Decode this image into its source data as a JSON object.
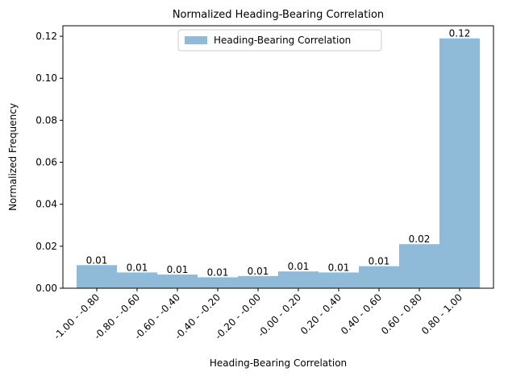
{
  "chart_data": {
    "type": "bar",
    "title": "Normalized Heading-Bearing Correlation",
    "x_label": "Heading-Bearing Correlation",
    "y_label": "Normalized Frequency",
    "categories": [
      "-1.00 - -0.80",
      "-0.80 - -0.60",
      "-0.60 - -0.40",
      "-0.40 - -0.20",
      "-0.20 - -0.00",
      "-0.00 - 0.20",
      "0.20 - 0.40",
      "0.40 - 0.60",
      "0.60 - 0.80",
      "0.80 - 1.00"
    ],
    "series": [
      {
        "name": "Heading-Bearing Correlation",
        "color": "#8fbbd9",
        "values": [
          0.011,
          0.0075,
          0.0065,
          0.0052,
          0.0058,
          0.008,
          0.0075,
          0.0105,
          0.021,
          0.119
        ],
        "value_labels": [
          "0.01",
          "0.01",
          "0.01",
          "0.01",
          "0.01",
          "0.01",
          "0.01",
          "0.01",
          "0.02",
          "0.12"
        ]
      }
    ],
    "ylim": [
      0,
      0.125
    ],
    "yticks": [
      {
        "value": 0,
        "label": "0.00"
      },
      0.02,
      0.04,
      0.06,
      0.08,
      {
        "value": 0.1,
        "label": "0.10"
      },
      0.12
    ],
    "legend": "upper center"
  }
}
